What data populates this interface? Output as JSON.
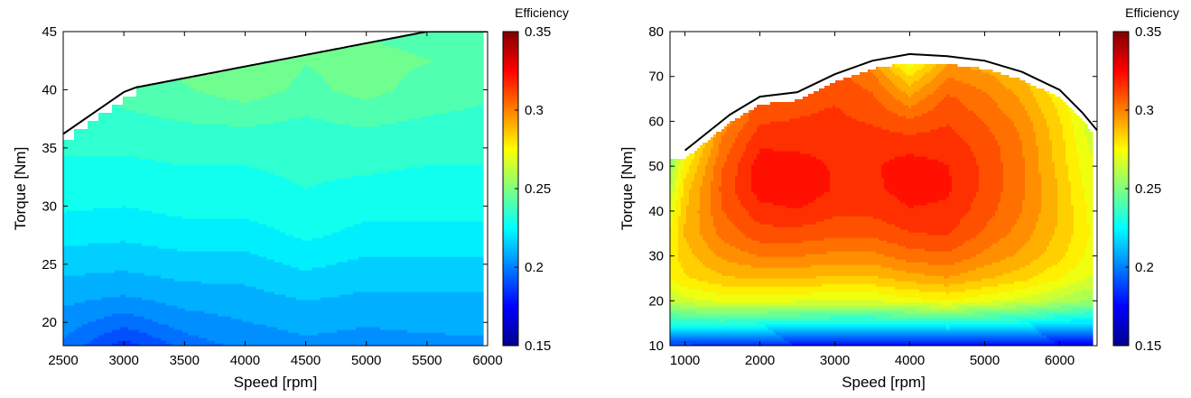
{
  "chart_data": [
    {
      "type": "heatmap",
      "title": "",
      "xlabel": "Speed [rpm]",
      "ylabel": "Torque [Nm]",
      "xlim": [
        2500,
        6000
      ],
      "ylim": [
        18,
        45
      ],
      "xticks": [
        2500,
        3000,
        3500,
        4000,
        4500,
        5000,
        5500,
        6000
      ],
      "yticks": [
        20,
        25,
        30,
        35,
        40,
        45
      ],
      "colorbar": {
        "title": "Efficiency",
        "range": [
          0.15,
          0.35
        ],
        "ticks": [
          0.15,
          0.2,
          0.25,
          0.3,
          0.35
        ]
      },
      "max_torque_curve": {
        "x": [
          2500,
          3000,
          3100,
          5500,
          6000
        ],
        "y": [
          36.2,
          39.8,
          40.2,
          45,
          45
        ]
      },
      "surface": {
        "x": [
          2500,
          3000,
          3500,
          4000,
          4500,
          5000,
          5500,
          5950
        ],
        "y": [
          18,
          20,
          22.5,
          25,
          27.5,
          30,
          32.5,
          35,
          37.5,
          40,
          42.5,
          45
        ],
        "z": [
          [
            0.199,
            0.184,
            0.196,
            0.202,
            0.205,
            0.203,
            0.204,
            0.205
          ],
          [
            0.203,
            0.196,
            0.203,
            0.206,
            0.208,
            0.207,
            0.208,
            0.208
          ],
          [
            0.209,
            0.207,
            0.21,
            0.211,
            0.214,
            0.212,
            0.212,
            0.212
          ],
          [
            0.215,
            0.214,
            0.216,
            0.216,
            0.22,
            0.217,
            0.217,
            0.217
          ],
          [
            0.221,
            0.22,
            0.222,
            0.222,
            0.226,
            0.223,
            0.223,
            0.223
          ],
          [
            0.226,
            0.225,
            0.227,
            0.227,
            0.23,
            0.227,
            0.227,
            0.227
          ],
          [
            0.229,
            0.229,
            0.23,
            0.23,
            0.232,
            0.231,
            0.23,
            0.23
          ],
          [
            0.232,
            0.232,
            0.233,
            0.233,
            0.234,
            0.234,
            0.233,
            0.233
          ],
          [
            0.234,
            0.236,
            0.238,
            0.239,
            0.237,
            0.239,
            0.237,
            0.236
          ],
          [
            0.236,
            0.24,
            0.243,
            0.247,
            0.242,
            0.246,
            0.241,
            0.239
          ],
          [
            0.238,
            0.242,
            0.246,
            0.25,
            0.244,
            0.246,
            0.244,
            0.241
          ],
          [
            0.24,
            0.243,
            0.246,
            0.247,
            0.243,
            0.243,
            0.241,
            0.24
          ]
        ]
      }
    },
    {
      "type": "heatmap",
      "title": "",
      "xlabel": "Speed [rpm]",
      "ylabel": "Torque [Nm]",
      "xlim": [
        800,
        6500
      ],
      "ylim": [
        10,
        80
      ],
      "xticks": [
        1000,
        2000,
        3000,
        4000,
        5000,
        6000
      ],
      "yticks": [
        10,
        20,
        30,
        40,
        50,
        60,
        70,
        80
      ],
      "colorbar": {
        "title": "Efficiency",
        "range": [
          0.15,
          0.35
        ],
        "ticks": [
          0.15,
          0.2,
          0.25,
          0.3,
          0.35
        ]
      },
      "max_torque_curve": {
        "x": [
          1000,
          1600,
          2000,
          2500,
          3000,
          3500,
          4000,
          4500,
          5000,
          5500,
          6000,
          6300,
          6500
        ],
        "y": [
          53.5,
          61.5,
          65.5,
          66.5,
          70.5,
          73.5,
          75,
          74.5,
          73.5,
          71,
          67,
          62,
          58
        ]
      },
      "surface": {
        "x": [
          800,
          1000,
          1500,
          2000,
          2500,
          3000,
          3500,
          4000,
          4500,
          5000,
          5500,
          6000,
          6400
        ],
        "y": [
          10,
          15,
          20,
          25,
          30,
          35,
          40,
          45,
          50,
          55,
          60,
          65,
          70,
          73
        ],
        "z": [
          [
            0.185,
            0.185,
            0.183,
            0.18,
            0.178,
            0.176,
            0.175,
            0.176,
            0.178,
            0.176,
            0.175,
            0.172,
            0.172
          ],
          [
            0.23,
            0.232,
            0.232,
            0.23,
            0.228,
            0.226,
            0.226,
            0.228,
            0.23,
            0.227,
            0.225,
            0.22,
            0.218
          ],
          [
            0.262,
            0.266,
            0.27,
            0.27,
            0.269,
            0.268,
            0.268,
            0.272,
            0.275,
            0.27,
            0.266,
            0.26,
            0.255
          ],
          [
            0.275,
            0.28,
            0.286,
            0.288,
            0.287,
            0.286,
            0.286,
            0.29,
            0.293,
            0.288,
            0.283,
            0.275,
            0.268
          ],
          [
            0.278,
            0.285,
            0.295,
            0.3,
            0.3,
            0.298,
            0.298,
            0.303,
            0.305,
            0.298,
            0.292,
            0.283,
            0.273
          ],
          [
            0.275,
            0.288,
            0.302,
            0.31,
            0.31,
            0.308,
            0.308,
            0.312,
            0.313,
            0.305,
            0.297,
            0.286,
            0.275
          ],
          [
            0.27,
            0.287,
            0.306,
            0.316,
            0.318,
            0.314,
            0.314,
            0.318,
            0.317,
            0.309,
            0.3,
            0.287,
            0.274
          ],
          [
            0.262,
            0.284,
            0.308,
            0.322,
            0.324,
            0.318,
            0.317,
            0.322,
            0.32,
            0.311,
            0.301,
            0.287,
            0.272
          ],
          [
            0.255,
            0.278,
            0.306,
            0.322,
            0.322,
            0.318,
            0.318,
            0.322,
            0.319,
            0.311,
            0.301,
            0.285,
            0.27
          ],
          [
            0.248,
            0.27,
            0.302,
            0.318,
            0.317,
            0.317,
            0.316,
            0.316,
            0.316,
            0.31,
            0.3,
            0.284,
            0.268
          ],
          [
            0.24,
            0.262,
            0.296,
            0.312,
            0.313,
            0.314,
            0.312,
            0.308,
            0.312,
            0.306,
            0.298,
            0.282,
            0.265
          ],
          [
            0.232,
            0.255,
            0.29,
            0.308,
            0.31,
            0.312,
            0.308,
            0.296,
            0.308,
            0.302,
            0.293,
            0.278,
            0.262
          ],
          [
            0.226,
            0.248,
            0.284,
            0.304,
            0.307,
            0.309,
            0.302,
            0.282,
            0.3,
            0.296,
            0.288,
            0.272,
            0.258
          ],
          [
            0.222,
            0.244,
            0.28,
            0.3,
            0.304,
            0.306,
            0.296,
            0.27,
            0.294,
            0.29,
            0.283,
            0.267,
            0.255
          ]
        ]
      }
    }
  ]
}
